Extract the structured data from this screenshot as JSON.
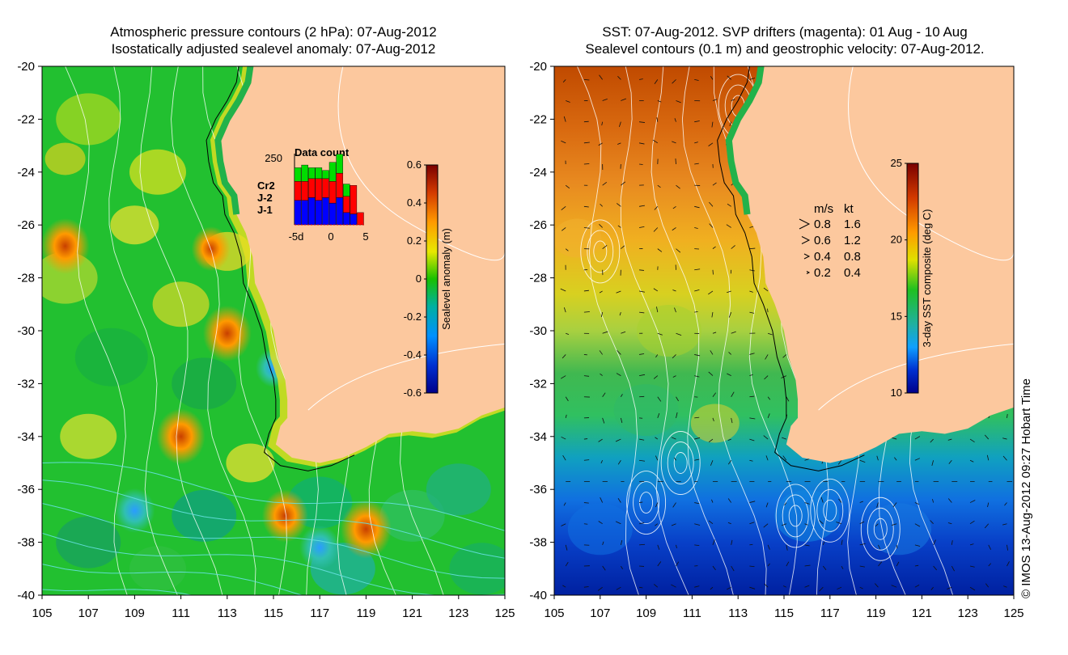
{
  "chart_data": [
    {
      "type": "heatmap",
      "name": "sealevel-anomaly-map",
      "title_lines": [
        "Atmospheric pressure contours (2 hPa): 07-Aug-2012",
        "Isostatically adjusted sealevel anomaly: 07-Aug-2012"
      ],
      "xlim": [
        105,
        125
      ],
      "ylim": [
        -40,
        -20
      ],
      "x_ticks": [
        "105",
        "107",
        "109",
        "111",
        "113",
        "115",
        "117",
        "119",
        "121",
        "123",
        "125"
      ],
      "y_ticks": [
        "-20",
        "-22",
        "-24",
        "-26",
        "-28",
        "-30",
        "-32",
        "-34",
        "-36",
        "-38",
        "-40"
      ],
      "colorbar": {
        "label": "Sealevel anomaly (m)",
        "range": [
          -0.6,
          0.6
        ],
        "ticks": [
          "0.6",
          "0.4",
          "0.2",
          "0",
          "-0.2",
          "-0.4",
          "-0.6"
        ]
      },
      "hot_spots": [
        {
          "lon": 106.0,
          "lat": -26.8,
          "value": 0.4
        },
        {
          "lon": 113.0,
          "lat": -30.1,
          "value": 0.4
        },
        {
          "lon": 111.0,
          "lat": -34.0,
          "value": 0.4
        },
        {
          "lon": 115.5,
          "lat": -37.0,
          "value": 0.35
        },
        {
          "lon": 119.0,
          "lat": -37.5,
          "value": 0.45
        },
        {
          "lon": 112.3,
          "lat": -26.9,
          "value": 0.2
        }
      ],
      "cold_spots": [
        {
          "lon": 109.0,
          "lat": -36.8,
          "value": -0.3
        },
        {
          "lon": 115.0,
          "lat": -31.4,
          "value": -0.2
        },
        {
          "lon": 117.0,
          "lat": -38.2,
          "value": -0.3
        }
      ],
      "inset": {
        "title": "Data count",
        "y_max_label": "250",
        "x_labels": [
          "-5d",
          "0",
          "5"
        ],
        "legend": [
          {
            "label": "Cr2",
            "color": "#00dd00"
          },
          {
            "label": "J-2",
            "color": "#ff0000"
          },
          {
            "label": "J-1",
            "color": "#0000ff"
          }
        ],
        "days": [
          -5,
          -4,
          -3,
          -2,
          -1,
          0,
          1,
          2,
          3,
          4
        ],
        "series": [
          {
            "name": "J-1",
            "values": [
              90,
              90,
              100,
              90,
              100,
              80,
              100,
              45,
              40,
              0
            ]
          },
          {
            "name": "J-2",
            "values": [
              70,
              70,
              70,
              80,
              70,
              80,
              90,
              60,
              105,
              45
            ]
          },
          {
            "name": "Cr2",
            "values": [
              50,
              60,
              40,
              40,
              30,
              70,
              70,
              45,
              0,
              0
            ]
          }
        ],
        "y_max": 250
      }
    },
    {
      "type": "heatmap",
      "name": "sst-map",
      "title_lines": [
        "SST: 07-Aug-2012. SVP drifters (magenta): 01 Aug - 10 Aug",
        "Sealevel contours (0.1 m) and geostrophic velocity: 07-Aug-2012."
      ],
      "xlim": [
        105,
        125
      ],
      "ylim": [
        -40,
        -20
      ],
      "x_ticks": [
        "105",
        "107",
        "109",
        "111",
        "113",
        "115",
        "117",
        "119",
        "121",
        "123",
        "125"
      ],
      "y_ticks": [
        "-20",
        "-22",
        "-24",
        "-26",
        "-28",
        "-30",
        "-32",
        "-34",
        "-36",
        "-38",
        "-40"
      ],
      "colorbar": {
        "label": "3-day SST composite (deg C)",
        "range": [
          10,
          25
        ],
        "ticks": [
          "25",
          "20",
          "15",
          "10"
        ]
      },
      "velocity_legend": {
        "headers": [
          "m/s",
          "kt"
        ],
        "rows": [
          {
            "ms": "0.8",
            "kt": "1.6"
          },
          {
            "ms": "0.6",
            "kt": "1.2"
          },
          {
            "ms": "0.4",
            "kt": "0.8"
          },
          {
            "ms": "0.2",
            "kt": "0.4"
          }
        ]
      }
    }
  ],
  "colors": {
    "land": "#fcc89e",
    "coastal_green": "#22b24a",
    "white_contour": "#ffffff",
    "cyan_contour": "#66e0e0"
  },
  "footer": {
    "credit": "© IMOS 13-Aug-2012 09:27 Hobart Time"
  }
}
